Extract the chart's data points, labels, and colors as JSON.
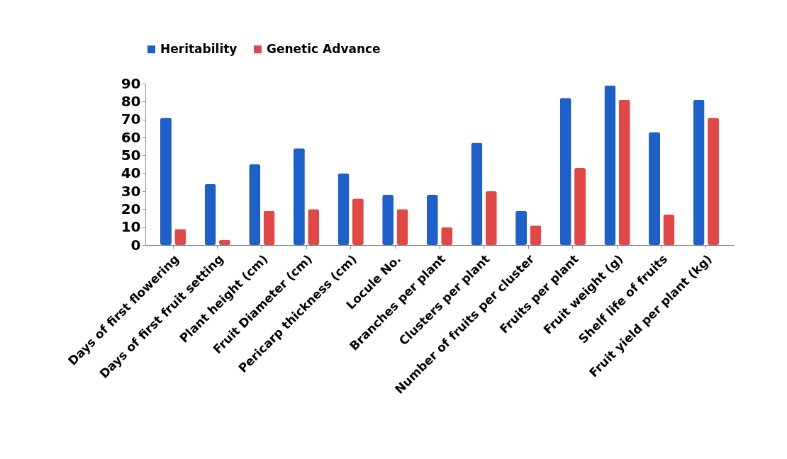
{
  "chart_data": {
    "type": "bar",
    "categories": [
      "Days of first flowering",
      "Days of first fruit setting",
      "Plant height (cm)",
      "Fruit Diameter (cm)",
      "Pericarp thickness (cm)",
      "Locule No.",
      "Branches per plant",
      "Clusters per plant",
      "Number of fruits per cluster",
      "Fruits per plant",
      "Fruit weight (g)",
      "Shelf life of fruits",
      "Fruit yield per plant (kg)"
    ],
    "series": [
      {
        "name": "Heritability",
        "color": "#1f5fc8",
        "values": [
          71,
          34,
          45,
          54,
          40,
          28,
          28,
          57,
          19,
          82,
          89,
          63,
          81
        ]
      },
      {
        "name": "Genetic Advance",
        "color": "#e04848",
        "values": [
          9,
          3,
          19,
          20,
          26,
          20,
          10,
          30,
          11,
          43,
          81,
          17,
          71
        ]
      }
    ],
    "ylim": [
      0,
      90
    ],
    "yticks": [
      0,
      10,
      20,
      30,
      40,
      50,
      60,
      70,
      80,
      90
    ],
    "grid": false,
    "legend": "top"
  }
}
